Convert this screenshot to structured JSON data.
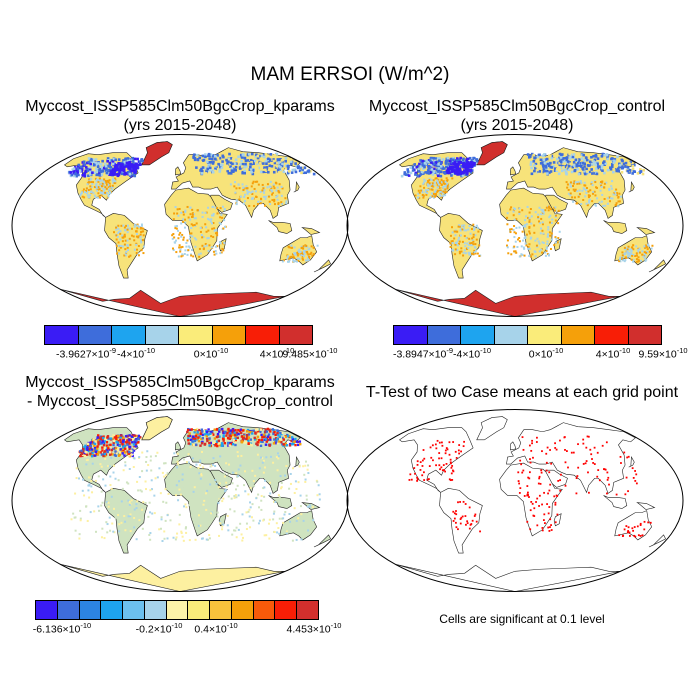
{
  "title": "MAM ERRSOI (W/m^2)",
  "panels": [
    {
      "title_line1": "Myccost_ISSP585Clm50BgcCrop_kparams",
      "title_line2": "(yrs 2015-2048)"
    },
    {
      "title_line1": "Myccost_ISSP585Clm50BgcCrop_control",
      "title_line2": "(yrs 2015-2048)"
    },
    {
      "title_line1": "Myccost_ISSP585Clm50BgcCrop_kparams",
      "title_line2": "- Myccost_ISSP585Clm50BgcCrop_control"
    },
    {
      "title_line1": "T-Test of two Case means at each grid point",
      "title_line2": ""
    }
  ],
  "colorbars": [
    {
      "colors": [
        "#3a1cf5",
        "#3e6ddb",
        "#1ea4ef",
        "#a7d3ea",
        "#faec7a",
        "#f5a00a",
        "#f81e06",
        "#d12f2d"
      ],
      "labels": [
        {
          "m": "-3.9627",
          "e": "-9",
          "t": "×10"
        },
        {
          "m": "-4",
          "e": "-10",
          "t": "×10"
        },
        {
          "m": "0",
          "e": "-10",
          "t": "×10"
        },
        {
          "m": "4",
          "e": "-10",
          "t": "×10"
        },
        {
          "m": "9.485",
          "e": "-10",
          "t": "×10"
        }
      ]
    },
    {
      "colors": [
        "#3a1cf5",
        "#3e6ddb",
        "#1ea4ef",
        "#a7d3ea",
        "#faec7a",
        "#f5a00a",
        "#f81e06",
        "#d12f2d"
      ],
      "labels": [
        {
          "m": "-3.8947",
          "e": "-9",
          "t": "×10"
        },
        {
          "m": "-4",
          "e": "-10",
          "t": "×10"
        },
        {
          "m": "0",
          "e": "-10",
          "t": "×10"
        },
        {
          "m": "4",
          "e": "-10",
          "t": "×10"
        },
        {
          "m": "9.59",
          "e": "-10",
          "t": "×10"
        }
      ]
    },
    {
      "colors": [
        "#3a1cf5",
        "#3e6ddb",
        "#2c84e3",
        "#1ea4ef",
        "#6cc0ee",
        "#a7d3ea",
        "#fdf3a8",
        "#faec7a",
        "#f8c23c",
        "#f5a00a",
        "#f85a0a",
        "#f81e06",
        "#d12f2d"
      ],
      "labels": [
        {
          "m": "-6.136",
          "e": "-10",
          "t": "×10"
        },
        {
          "m": "-0.2",
          "e": "-10",
          "t": "×10"
        },
        {
          "m": "0.4",
          "e": "-10",
          "t": "×10"
        },
        {
          "m": "4.453",
          "e": "-10",
          "t": "×10"
        }
      ]
    }
  ],
  "significance_note": "Cells are significant at 0.1 level",
  "map_colors": {
    "land_yellow": "#f7e37a",
    "land_orange": "#f5a00a",
    "land_lightblue": "#a7d3ea",
    "cold_blue": "#3e6ddb",
    "cold_violet": "#3a1cf5",
    "antarctica_red": "#d12f2d",
    "diff_green": "#cfe3c0",
    "diff_yellow": "#fdf0a0",
    "sig_dot": "#ff0000"
  }
}
